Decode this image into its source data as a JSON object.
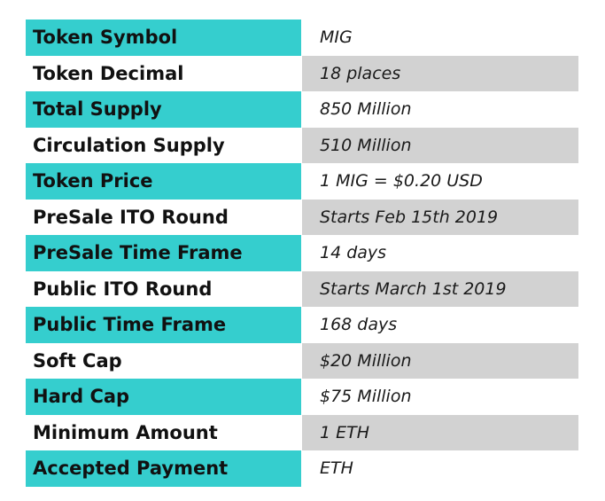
{
  "colors": {
    "label_highlight": "#35cece",
    "value_highlight": "#d2d2d2"
  },
  "rows": [
    {
      "label": "Token Symbol",
      "value": "MIG"
    },
    {
      "label": "Token Decimal",
      "value": "18 places"
    },
    {
      "label": "Total Supply",
      "value": "850 Million"
    },
    {
      "label": "Circulation Supply",
      "value": "510 Million"
    },
    {
      "label": "Token Price",
      "value": "1 MIG = $0.20 USD"
    },
    {
      "label": "PreSale ITO Round",
      "value": "Starts Feb 15th 2019"
    },
    {
      "label": "PreSale Time Frame",
      "value": "14 days"
    },
    {
      "label": "Public ITO Round",
      "value": "Starts March 1st 2019"
    },
    {
      "label": "Public Time Frame",
      "value": "168 days"
    },
    {
      "label": "Soft Cap",
      "value": "$20 Million"
    },
    {
      "label": "Hard Cap",
      "value": "$75 Million"
    },
    {
      "label": "Minimum Amount",
      "value": "1 ETH"
    },
    {
      "label": "Accepted Payment",
      "value": "ETH"
    }
  ]
}
